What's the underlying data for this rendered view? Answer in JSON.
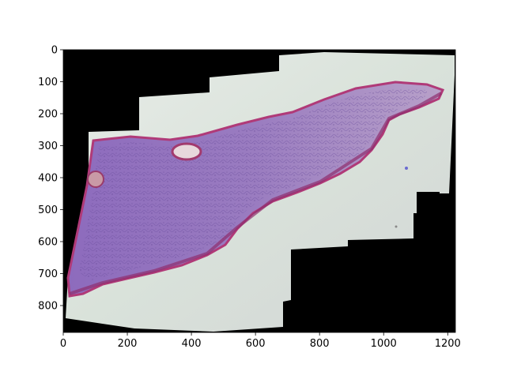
{
  "image": {
    "subject": "stitched microscopy slide of H&E-stained tissue section",
    "background_color": "#000000",
    "slide_color": "#dfe4df",
    "tissue_color": "#8a6cb8",
    "epithelium_color": "#b03a78"
  },
  "axes": {
    "x_range": [
      0,
      1224
    ],
    "y_range": [
      884,
      0
    ],
    "x_ticks": [
      0,
      200,
      400,
      600,
      800,
      1000,
      1200
    ],
    "y_ticks": [
      0,
      100,
      200,
      300,
      400,
      500,
      600,
      700,
      800
    ],
    "x_tick_labels": [
      "0",
      "200",
      "400",
      "600",
      "800",
      "1000",
      "1200"
    ],
    "y_tick_labels": [
      "0",
      "100",
      "200",
      "300",
      "400",
      "500",
      "600",
      "700",
      "800"
    ]
  }
}
